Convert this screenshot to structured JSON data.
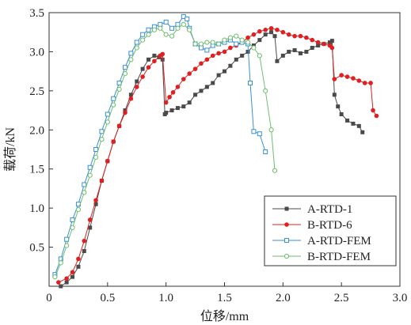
{
  "chart_data": {
    "type": "scatter",
    "title": "",
    "xlabel": "位移/mm",
    "ylabel": "载荷/kN",
    "xlim": [
      0,
      3.0
    ],
    "ylim": [
      0,
      3.5
    ],
    "xticks": [
      "0",
      "0.5",
      "1.0",
      "1.5",
      "2.0",
      "2.5",
      "3.0"
    ],
    "yticks": [
      "0.5",
      "1.0",
      "1.5",
      "2.0",
      "2.5",
      "3.0",
      "3.5"
    ],
    "grid": false,
    "legend_position": "bottom-right",
    "series": [
      {
        "name": "A-RTD-1",
        "color": "#4a4a4a",
        "marker": "square-filled",
        "points": [
          [
            0.1,
            0.0
          ],
          [
            0.15,
            0.05
          ],
          [
            0.2,
            0.12
          ],
          [
            0.25,
            0.25
          ],
          [
            0.3,
            0.45
          ],
          [
            0.35,
            0.75
          ],
          [
            0.4,
            1.05
          ],
          [
            0.45,
            1.35
          ],
          [
            0.5,
            1.6
          ],
          [
            0.55,
            1.85
          ],
          [
            0.6,
            2.05
          ],
          [
            0.65,
            2.25
          ],
          [
            0.7,
            2.45
          ],
          [
            0.75,
            2.62
          ],
          [
            0.8,
            2.78
          ],
          [
            0.85,
            2.9
          ],
          [
            0.9,
            2.95
          ],
          [
            0.94,
            2.93
          ],
          [
            0.97,
            2.9
          ],
          [
            0.99,
            2.2
          ],
          [
            1.0,
            2.22
          ],
          [
            1.05,
            2.25
          ],
          [
            1.1,
            2.28
          ],
          [
            1.15,
            2.3
          ],
          [
            1.2,
            2.35
          ],
          [
            1.25,
            2.45
          ],
          [
            1.3,
            2.5
          ],
          [
            1.35,
            2.55
          ],
          [
            1.4,
            2.6
          ],
          [
            1.45,
            2.7
          ],
          [
            1.5,
            2.75
          ],
          [
            1.55,
            2.82
          ],
          [
            1.6,
            2.9
          ],
          [
            1.65,
            2.95
          ],
          [
            1.7,
            3.0
          ],
          [
            1.75,
            3.08
          ],
          [
            1.8,
            3.15
          ],
          [
            1.85,
            3.22
          ],
          [
            1.9,
            3.25
          ],
          [
            1.93,
            3.2
          ],
          [
            1.95,
            2.88
          ],
          [
            2.0,
            2.95
          ],
          [
            2.05,
            3.0
          ],
          [
            2.1,
            3.02
          ],
          [
            2.15,
            2.98
          ],
          [
            2.2,
            3.0
          ],
          [
            2.25,
            3.05
          ],
          [
            2.3,
            3.08
          ],
          [
            2.35,
            3.1
          ],
          [
            2.4,
            3.12
          ],
          [
            2.42,
            3.14
          ],
          [
            2.44,
            2.45
          ],
          [
            2.47,
            2.3
          ],
          [
            2.5,
            2.2
          ],
          [
            2.55,
            2.12
          ],
          [
            2.6,
            2.08
          ],
          [
            2.65,
            2.05
          ],
          [
            2.68,
            1.97
          ]
        ]
      },
      {
        "name": "B-RTD-6",
        "color": "#e02020",
        "marker": "circle-filled",
        "points": [
          [
            0.08,
            0.05
          ],
          [
            0.15,
            0.1
          ],
          [
            0.2,
            0.18
          ],
          [
            0.25,
            0.35
          ],
          [
            0.3,
            0.58
          ],
          [
            0.35,
            0.85
          ],
          [
            0.4,
            1.1
          ],
          [
            0.45,
            1.35
          ],
          [
            0.5,
            1.6
          ],
          [
            0.55,
            1.85
          ],
          [
            0.6,
            2.05
          ],
          [
            0.65,
            2.22
          ],
          [
            0.7,
            2.4
          ],
          [
            0.75,
            2.55
          ],
          [
            0.8,
            2.68
          ],
          [
            0.85,
            2.8
          ],
          [
            0.9,
            2.88
          ],
          [
            0.95,
            2.95
          ],
          [
            0.97,
            2.97
          ],
          [
            1.0,
            2.35
          ],
          [
            1.03,
            2.42
          ],
          [
            1.06,
            2.48
          ],
          [
            1.1,
            2.55
          ],
          [
            1.15,
            2.65
          ],
          [
            1.2,
            2.72
          ],
          [
            1.25,
            2.78
          ],
          [
            1.3,
            2.85
          ],
          [
            1.35,
            2.9
          ],
          [
            1.4,
            2.95
          ],
          [
            1.45,
            2.98
          ],
          [
            1.5,
            3.0
          ],
          [
            1.55,
            3.05
          ],
          [
            1.6,
            3.08
          ],
          [
            1.65,
            3.12
          ],
          [
            1.7,
            3.18
          ],
          [
            1.75,
            3.22
          ],
          [
            1.8,
            3.26
          ],
          [
            1.85,
            3.28
          ],
          [
            1.9,
            3.3
          ],
          [
            1.95,
            3.28
          ],
          [
            2.0,
            3.25
          ],
          [
            2.05,
            3.22
          ],
          [
            2.1,
            3.2
          ],
          [
            2.15,
            3.2
          ],
          [
            2.2,
            3.18
          ],
          [
            2.25,
            3.15
          ],
          [
            2.3,
            3.12
          ],
          [
            2.35,
            3.1
          ],
          [
            2.4,
            3.08
          ],
          [
            2.42,
            3.05
          ],
          [
            2.44,
            2.65
          ],
          [
            2.5,
            2.7
          ],
          [
            2.55,
            2.68
          ],
          [
            2.6,
            2.66
          ],
          [
            2.65,
            2.63
          ],
          [
            2.7,
            2.6
          ],
          [
            2.75,
            2.6
          ],
          [
            2.77,
            2.25
          ],
          [
            2.8,
            2.18
          ]
        ]
      },
      {
        "name": "A-RTD-FEM",
        "color": "#3a8fd6",
        "marker": "square-open",
        "points": [
          [
            0.05,
            0.15
          ],
          [
            0.1,
            0.35
          ],
          [
            0.15,
            0.6
          ],
          [
            0.2,
            0.85
          ],
          [
            0.25,
            1.05
          ],
          [
            0.3,
            1.3
          ],
          [
            0.35,
            1.52
          ],
          [
            0.4,
            1.75
          ],
          [
            0.45,
            1.98
          ],
          [
            0.5,
            2.2
          ],
          [
            0.55,
            2.4
          ],
          [
            0.6,
            2.6
          ],
          [
            0.65,
            2.8
          ],
          [
            0.7,
            2.98
          ],
          [
            0.75,
            3.12
          ],
          [
            0.8,
            3.22
          ],
          [
            0.85,
            3.28
          ],
          [
            0.9,
            3.32
          ],
          [
            0.95,
            3.35
          ],
          [
            1.0,
            3.38
          ],
          [
            1.05,
            3.3
          ],
          [
            1.1,
            3.35
          ],
          [
            1.15,
            3.45
          ],
          [
            1.18,
            3.42
          ],
          [
            1.2,
            3.3
          ],
          [
            1.25,
            3.1
          ],
          [
            1.3,
            3.05
          ],
          [
            1.35,
            3.02
          ],
          [
            1.4,
            3.08
          ],
          [
            1.45,
            3.1
          ],
          [
            1.5,
            3.12
          ],
          [
            1.55,
            3.15
          ],
          [
            1.6,
            3.1
          ],
          [
            1.65,
            3.12
          ],
          [
            1.7,
            3.1
          ],
          [
            1.72,
            2.6
          ],
          [
            1.75,
            1.98
          ],
          [
            1.8,
            1.95
          ],
          [
            1.85,
            1.72
          ]
        ]
      },
      {
        "name": "B-RTD-FEM",
        "color": "#6dbe6d",
        "marker": "circle-open",
        "points": [
          [
            0.05,
            0.12
          ],
          [
            0.1,
            0.3
          ],
          [
            0.15,
            0.52
          ],
          [
            0.2,
            0.75
          ],
          [
            0.25,
            0.98
          ],
          [
            0.3,
            1.2
          ],
          [
            0.35,
            1.42
          ],
          [
            0.4,
            1.65
          ],
          [
            0.45,
            1.88
          ],
          [
            0.5,
            2.1
          ],
          [
            0.55,
            2.32
          ],
          [
            0.6,
            2.52
          ],
          [
            0.65,
            2.72
          ],
          [
            0.7,
            2.9
          ],
          [
            0.75,
            3.05
          ],
          [
            0.8,
            3.15
          ],
          [
            0.85,
            3.22
          ],
          [
            0.9,
            3.28
          ],
          [
            0.95,
            3.3
          ],
          [
            1.0,
            3.22
          ],
          [
            1.05,
            3.2
          ],
          [
            1.1,
            3.3
          ],
          [
            1.15,
            3.35
          ],
          [
            1.2,
            3.28
          ],
          [
            1.25,
            3.1
          ],
          [
            1.3,
            3.1
          ],
          [
            1.35,
            3.12
          ],
          [
            1.4,
            3.12
          ],
          [
            1.45,
            3.1
          ],
          [
            1.5,
            3.15
          ],
          [
            1.55,
            3.18
          ],
          [
            1.6,
            3.2
          ],
          [
            1.65,
            3.15
          ],
          [
            1.7,
            3.12
          ],
          [
            1.75,
            3.05
          ],
          [
            1.8,
            2.95
          ],
          [
            1.85,
            2.5
          ],
          [
            1.9,
            2.0
          ],
          [
            1.93,
            1.48
          ]
        ]
      }
    ]
  }
}
